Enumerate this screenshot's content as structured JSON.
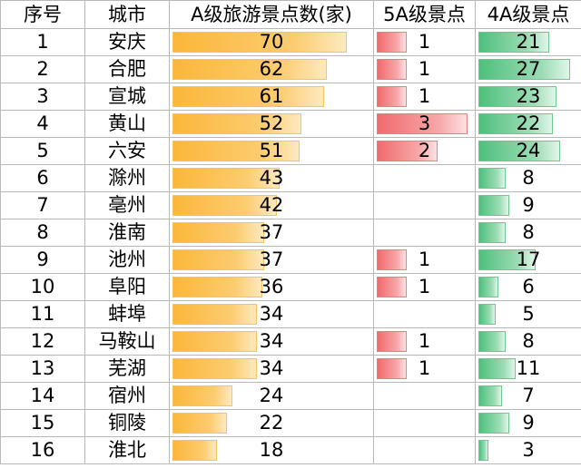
{
  "chart_data": {
    "type": "table",
    "headers": [
      "序号",
      "城市",
      "A级旅游景点数(家)",
      "5A级景点",
      "4A级景点"
    ],
    "colors": {
      "a_bar": "#fbb73a",
      "five_a_bar": "#f06b6e",
      "four_a_bar": "#4ec07c",
      "grid": "#b8b8b8"
    },
    "rows": [
      {
        "rank": "1",
        "city": "安庆",
        "a_total": 70,
        "a5": 1,
        "a4": 21
      },
      {
        "rank": "2",
        "city": "合肥",
        "a_total": 62,
        "a5": 1,
        "a4": 27
      },
      {
        "rank": "3",
        "city": "宣城",
        "a_total": 61,
        "a5": 1,
        "a4": 23
      },
      {
        "rank": "4",
        "city": "黄山",
        "a_total": 52,
        "a5": 3,
        "a4": 22
      },
      {
        "rank": "5",
        "city": "六安",
        "a_total": 51,
        "a5": 2,
        "a4": 24
      },
      {
        "rank": "6",
        "city": "滁州",
        "a_total": 43,
        "a5": null,
        "a4": 8
      },
      {
        "rank": "7",
        "city": "亳州",
        "a_total": 42,
        "a5": null,
        "a4": 9
      },
      {
        "rank": "8",
        "city": "淮南",
        "a_total": 37,
        "a5": null,
        "a4": 8
      },
      {
        "rank": "9",
        "city": "池州",
        "a_total": 37,
        "a5": 1,
        "a4": 17
      },
      {
        "rank": "10",
        "city": "阜阳",
        "a_total": 36,
        "a5": 1,
        "a4": 6
      },
      {
        "rank": "11",
        "city": "蚌埠",
        "a_total": 34,
        "a5": null,
        "a4": 5
      },
      {
        "rank": "12",
        "city": "马鞍山",
        "a_total": 34,
        "a5": 1,
        "a4": 8
      },
      {
        "rank": "13",
        "city": "芜湖",
        "a_total": 34,
        "a5": 1,
        "a4": 11
      },
      {
        "rank": "14",
        "city": "宿州",
        "a_total": 24,
        "a5": null,
        "a4": 7
      },
      {
        "rank": "15",
        "city": "铜陵",
        "a_total": 22,
        "a5": null,
        "a4": 9
      },
      {
        "rank": "16",
        "city": "淮北",
        "a_total": 18,
        "a5": null,
        "a4": 3
      }
    ]
  }
}
